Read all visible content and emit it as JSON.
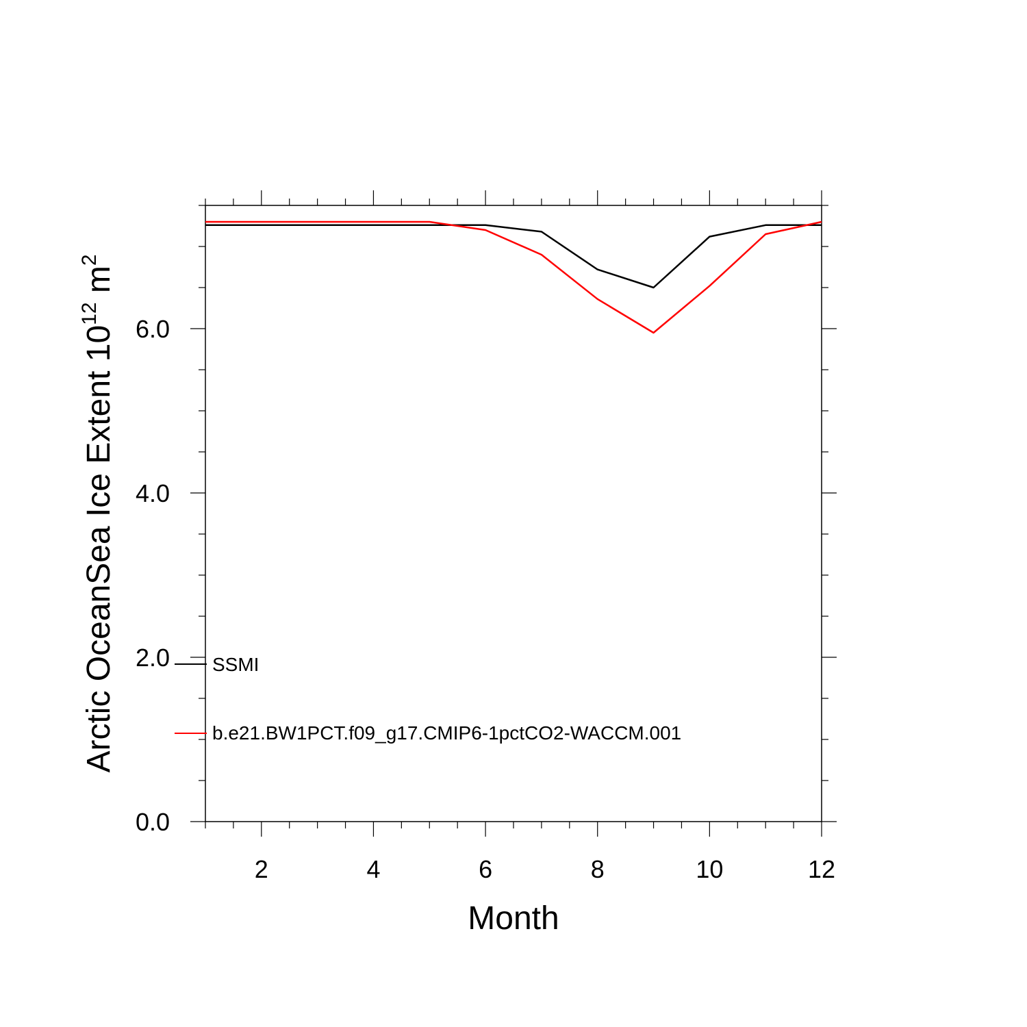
{
  "chart_data": {
    "type": "line",
    "xlabel": "Month",
    "ylabel": "Arctic OceanSea Ice Extent 10",
    "ylabel_sup1": "12",
    "ylabel_unit": " m",
    "ylabel_sup2": "2",
    "xlim": [
      1,
      12
    ],
    "ylim": [
      0,
      7.5
    ],
    "xticks": [
      2,
      4,
      6,
      8,
      10,
      12
    ],
    "xtick_labels": [
      "2",
      "4",
      "6",
      "8",
      "10",
      "12"
    ],
    "yticks": [
      0,
      2,
      4,
      6
    ],
    "ytick_labels": [
      "0.0",
      "2.0",
      "4.0",
      "6.0"
    ],
    "grid": false,
    "legend_position": "bottom-left",
    "x": [
      1,
      2,
      3,
      4,
      5,
      6,
      7,
      8,
      9,
      10,
      11,
      12
    ],
    "series": [
      {
        "name": "SSMI",
        "color": "#000000",
        "values": [
          7.26,
          7.26,
          7.26,
          7.26,
          7.26,
          7.26,
          7.18,
          6.72,
          6.5,
          7.12,
          7.26,
          7.26
        ]
      },
      {
        "name": "b.e21.BW1PCT.f09_g17.CMIP6-1pctCO2-WACCM.001",
        "color": "#ff0000",
        "values": [
          7.3,
          7.3,
          7.3,
          7.3,
          7.3,
          7.2,
          6.9,
          6.36,
          5.95,
          6.52,
          7.15,
          7.3
        ]
      }
    ]
  }
}
